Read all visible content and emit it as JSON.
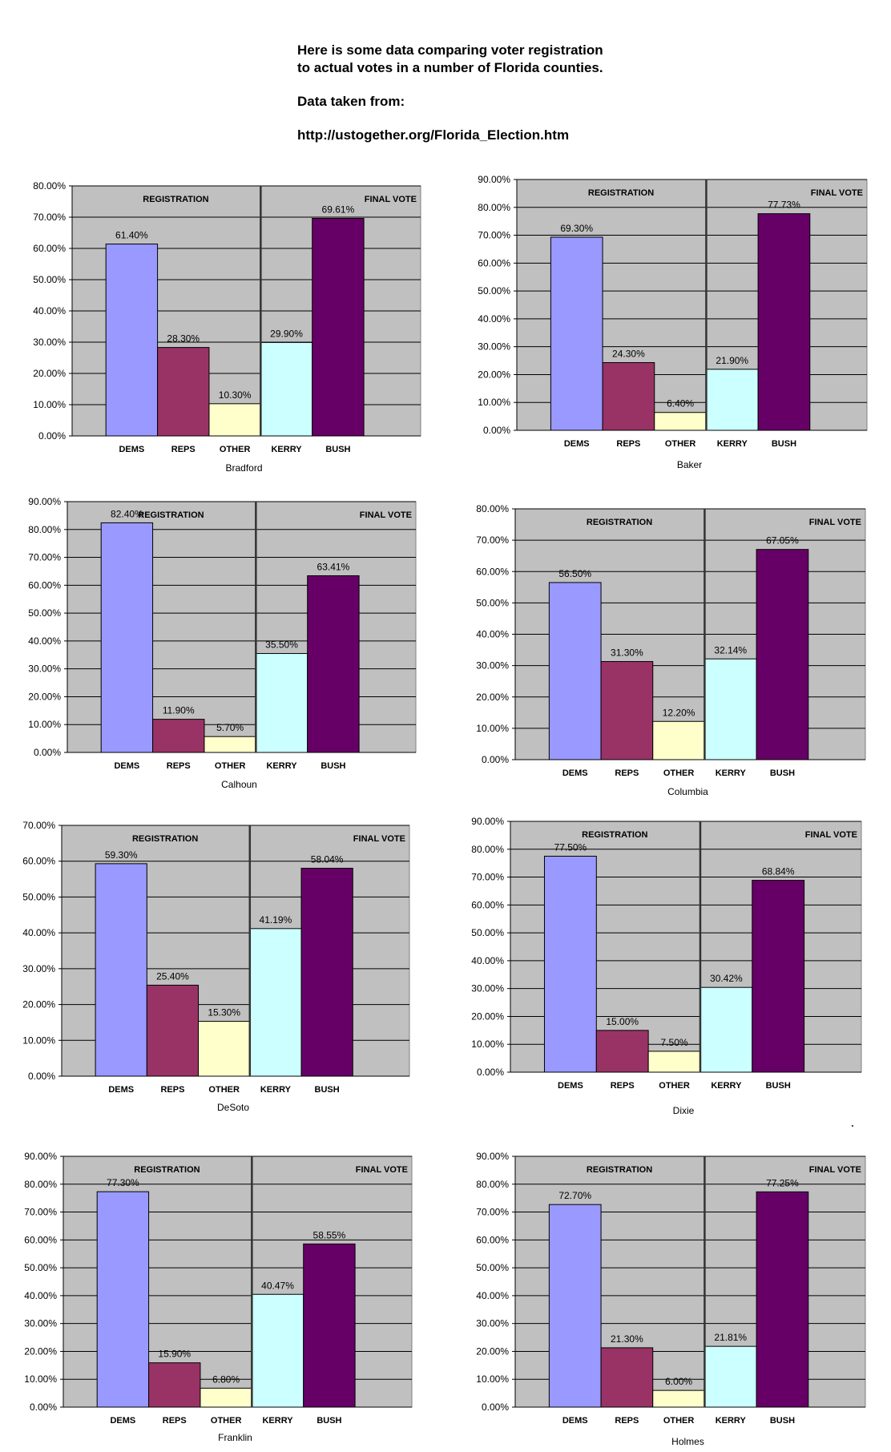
{
  "header": {
    "line1": "Here is some data comparing voter registration",
    "line2": "to actual votes in a number of Florida counties.",
    "line3": "Data taken from:",
    "line4": "http://ustogether.org/Florida_Election.htm"
  },
  "colors": {
    "plot_bg": "#C0C0C0",
    "dems": "#9999FF",
    "reps": "#993366",
    "other": "#FFFFCC",
    "kerry": "#CCFFFF",
    "bush": "#660066"
  },
  "chart_data": [
    {
      "type": "bar",
      "county": "Bradford",
      "categories": [
        "DEMS",
        "REPS",
        "OTHER",
        "KERRY",
        "BUSH"
      ],
      "values": [
        61.4,
        28.3,
        10.3,
        29.9,
        69.61
      ],
      "labels": [
        "61.40%",
        "28.30%",
        "10.30%",
        "29.90%",
        "69.61%"
      ],
      "yticks": [
        "0.00%",
        "10.00%",
        "20.00%",
        "30.00%",
        "40.00%",
        "50.00%",
        "60.00%",
        "70.00%",
        "80.00%"
      ],
      "ylim": [
        0,
        80
      ],
      "registration_label": "REGISTRATION",
      "final_label": "FINAL VOTE",
      "grid": true
    },
    {
      "type": "bar",
      "county": "Baker",
      "categories": [
        "DEMS",
        "REPS",
        "OTHER",
        "KERRY",
        "BUSH"
      ],
      "values": [
        69.3,
        24.3,
        6.4,
        21.9,
        77.73
      ],
      "labels": [
        "69.30%",
        "24.30%",
        "6.40%",
        "21.90%",
        "77.73%"
      ],
      "yticks": [
        "0.00%",
        "10.00%",
        "20.00%",
        "30.00%",
        "40.00%",
        "50.00%",
        "60.00%",
        "70.00%",
        "80.00%",
        "90.00%"
      ],
      "ylim": [
        0,
        90
      ],
      "registration_label": "REGISTRATION",
      "final_label": "FINAL VOTE",
      "grid": true
    },
    {
      "type": "bar",
      "county": "Calhoun",
      "categories": [
        "DEMS",
        "REPS",
        "OTHER",
        "KERRY",
        "BUSH"
      ],
      "values": [
        82.4,
        11.9,
        5.7,
        35.5,
        63.41
      ],
      "labels": [
        "82.40%",
        "11.90%",
        "5.70%",
        "35.50%",
        "63.41%"
      ],
      "yticks": [
        "0.00%",
        "10.00%",
        "20.00%",
        "30.00%",
        "40.00%",
        "50.00%",
        "60.00%",
        "70.00%",
        "80.00%",
        "90.00%"
      ],
      "ylim": [
        0,
        90
      ],
      "registration_label": "REGISTRATION",
      "final_label": "FINAL VOTE",
      "grid": true
    },
    {
      "type": "bar",
      "county": "Columbia",
      "categories": [
        "DEMS",
        "REPS",
        "OTHER",
        "KERRY",
        "BUSH"
      ],
      "values": [
        56.5,
        31.3,
        12.2,
        32.14,
        67.05
      ],
      "labels": [
        "56.50%",
        "31.30%",
        "12.20%",
        "32.14%",
        "67.05%"
      ],
      "yticks": [
        "0.00%",
        "10.00%",
        "20.00%",
        "30.00%",
        "40.00%",
        "50.00%",
        "60.00%",
        "70.00%",
        "80.00%"
      ],
      "ylim": [
        0,
        80
      ],
      "registration_label": "REGISTRATION",
      "final_label": "FINAL VOTE",
      "grid": true
    },
    {
      "type": "bar",
      "county": "DeSoto",
      "categories": [
        "DEMS",
        "REPS",
        "OTHER",
        "KERRY",
        "BUSH"
      ],
      "values": [
        59.3,
        25.4,
        15.3,
        41.19,
        58.04
      ],
      "labels": [
        "59.30%",
        "25.40%",
        "15.30%",
        "41.19%",
        "58.04%"
      ],
      "yticks": [
        "0.00%",
        "10.00%",
        "20.00%",
        "30.00%",
        "40.00%",
        "50.00%",
        "60.00%",
        "70.00%"
      ],
      "ylim": [
        0,
        70
      ],
      "registration_label": "REGISTRATION",
      "final_label": "FINAL VOTE",
      "grid": true
    },
    {
      "type": "bar",
      "county": "Dixie",
      "categories": [
        "DEMS",
        "REPS",
        "OTHER",
        "KERRY",
        "BUSH"
      ],
      "values": [
        77.5,
        15.0,
        7.5,
        30.42,
        68.84
      ],
      "labels": [
        "77.50%",
        "15.00%",
        "7.50%",
        "30.42%",
        "68.84%"
      ],
      "yticks": [
        "0.00%",
        "10.00%",
        "20.00%",
        "30.00%",
        "40.00%",
        "50.00%",
        "60.00%",
        "70.00%",
        "80.00%",
        "90.00%"
      ],
      "ylim": [
        0,
        90
      ],
      "registration_label": "REGISTRATION",
      "final_label": "FINAL VOTE",
      "grid": true
    },
    {
      "type": "bar",
      "county": "Franklin",
      "categories": [
        "DEMS",
        "REPS",
        "OTHER",
        "KERRY",
        "BUSH"
      ],
      "values": [
        77.3,
        15.9,
        6.8,
        40.47,
        58.55
      ],
      "labels": [
        "77.30%",
        "15.90%",
        "6.80%",
        "40.47%",
        "58.55%"
      ],
      "yticks": [
        "0.00%",
        "10.00%",
        "20.00%",
        "30.00%",
        "40.00%",
        "50.00%",
        "60.00%",
        "70.00%",
        "80.00%",
        "90.00%"
      ],
      "ylim": [
        0,
        90
      ],
      "registration_label": "REGISTRATION",
      "final_label": "FINAL VOTE",
      "grid": true
    },
    {
      "type": "bar",
      "county": "Holmes",
      "categories": [
        "DEMS",
        "REPS",
        "OTHER",
        "KERRY",
        "BUSH"
      ],
      "values": [
        72.7,
        21.3,
        6.0,
        21.81,
        77.25
      ],
      "labels": [
        "72.70%",
        "21.30%",
        "6.00%",
        "21.81%",
        "77.25%"
      ],
      "yticks": [
        "0.00%",
        "10.00%",
        "20.00%",
        "30.00%",
        "40.00%",
        "50.00%",
        "60.00%",
        "70.00%",
        "80.00%",
        "90.00%"
      ],
      "ylim": [
        0,
        90
      ],
      "registration_label": "REGISTRATION",
      "final_label": "FINAL VOTE",
      "grid": true
    }
  ]
}
